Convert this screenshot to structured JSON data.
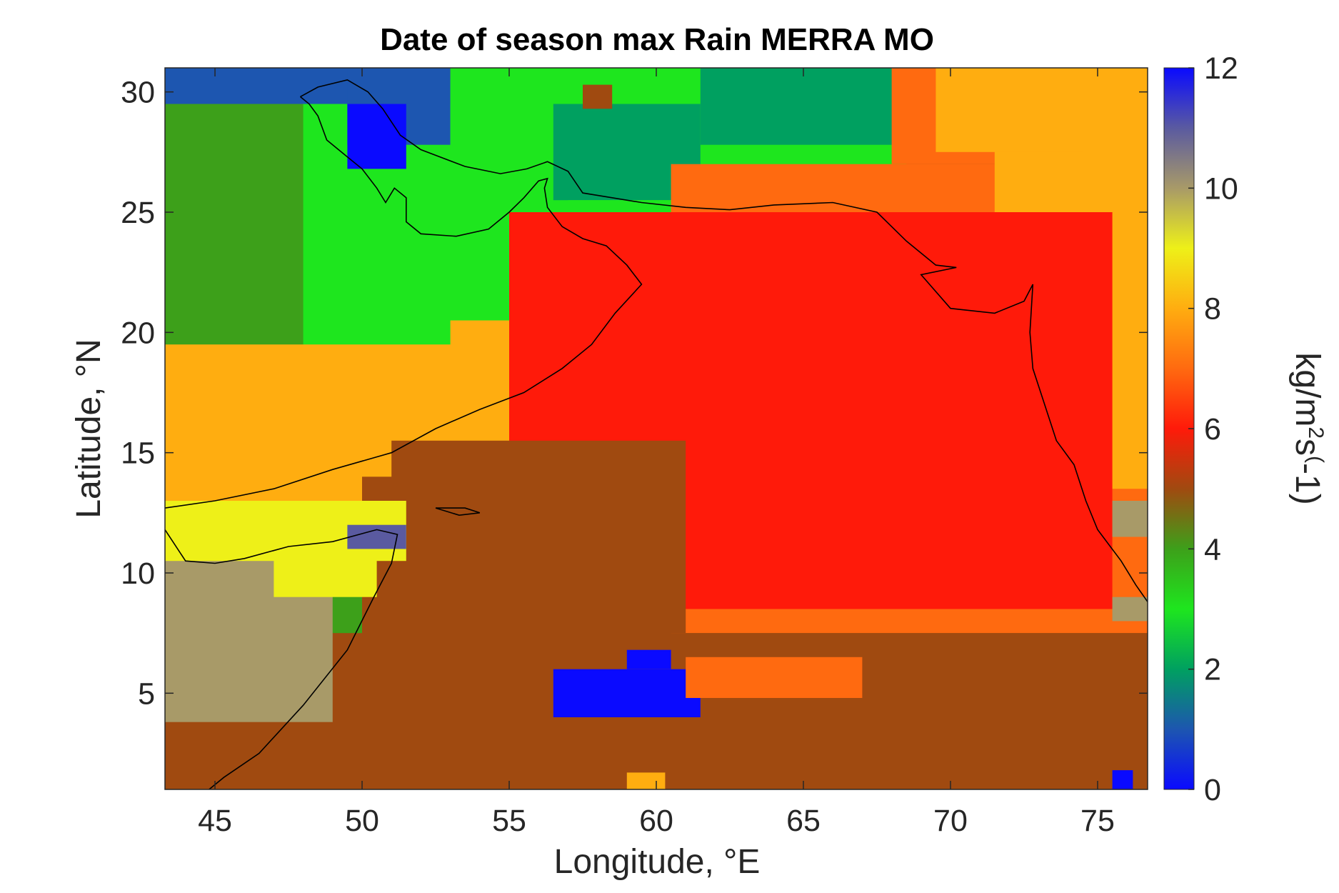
{
  "chart_data": {
    "type": "heatmap",
    "title": "Date of season max Rain MERRA MO",
    "xlabel": "Longitude, °E",
    "ylabel": "Latitude, °N",
    "xlim": [
      43.3,
      76.7
    ],
    "ylim": [
      1.0,
      31.0
    ],
    "xticks": [
      45,
      50,
      55,
      60,
      65,
      70,
      75
    ],
    "yticks": [
      5,
      10,
      15,
      20,
      25,
      30
    ],
    "xtick_labels": [
      "45",
      "50",
      "55",
      "60",
      "65",
      "70",
      "75"
    ],
    "ytick_labels": [
      "5",
      "10",
      "15",
      "20",
      "25",
      "30"
    ],
    "colorbar": {
      "label": "kg/m^2s^(-1)",
      "label_parts": [
        "kg/m",
        "2",
        "s",
        "(",
        "-1)"
      ],
      "range": [
        0,
        12
      ],
      "ticks": [
        0,
        2,
        4,
        6,
        8,
        10,
        12
      ],
      "tick_labels": [
        "0",
        "2",
        "4",
        "6",
        "8",
        "10",
        "12"
      ],
      "stops": [
        {
          "value": 0,
          "color": "#0a0aff"
        },
        {
          "value": 1,
          "color": "#1d56b0"
        },
        {
          "value": 2,
          "color": "#00a060"
        },
        {
          "value": 3,
          "color": "#1ee61e"
        },
        {
          "value": 4,
          "color": "#3da01a"
        },
        {
          "value": 5,
          "color": "#a04a10"
        },
        {
          "value": 6,
          "color": "#ff1a0a"
        },
        {
          "value": 7,
          "color": "#ff6a10"
        },
        {
          "value": 8,
          "color": "#ffad10"
        },
        {
          "value": 9,
          "color": "#eef018"
        },
        {
          "value": 10,
          "color": "#a89a68"
        },
        {
          "value": 11,
          "color": "#5a5aa0"
        },
        {
          "value": 12,
          "color": "#0a0aff"
        }
      ]
    },
    "background_value": 5,
    "regions": [
      {
        "value": 4.5,
        "lon": [
          43.3,
          52.0
        ],
        "lat": [
          1.0,
          31.0
        ]
      },
      {
        "value": 3,
        "lon": [
          45.0,
          57.5
        ],
        "lat": [
          15.5,
          30.5
        ]
      },
      {
        "value": 4.5,
        "lon": [
          43.3,
          48.0
        ],
        "lat": [
          16.5,
          29.5
        ]
      },
      {
        "value": 1,
        "lon": [
          43.3,
          53.0
        ],
        "lat": [
          29.5,
          31.0
        ]
      },
      {
        "value": 1,
        "lon": [
          49.5,
          53.0
        ],
        "lat": [
          27.8,
          31.0
        ]
      },
      {
        "value": 0.3,
        "lon": [
          49.5,
          51.5
        ],
        "lat": [
          26.8,
          29.5
        ]
      },
      {
        "value": 3,
        "lon": [
          53.0,
          68.5
        ],
        "lat": [
          24.5,
          31.0
        ]
      },
      {
        "value": 2,
        "lon": [
          61.5,
          68.5
        ],
        "lat": [
          27.8,
          31.0
        ]
      },
      {
        "value": 2,
        "lon": [
          56.5,
          61.5
        ],
        "lat": [
          25.5,
          29.5
        ]
      },
      {
        "value": 5,
        "lon": [
          57.5,
          58.5
        ],
        "lat": [
          29.3,
          30.3
        ]
      },
      {
        "value": 3,
        "lon": [
          57.0,
          61.5
        ],
        "lat": [
          22.0,
          25.5
        ]
      },
      {
        "value": 4.5,
        "lon": [
          57.0,
          61.5
        ],
        "lat": [
          21.0,
          23.0
        ]
      },
      {
        "value": 8,
        "lon": [
          43.3,
          57.0
        ],
        "lat": [
          12.5,
          19.5
        ]
      },
      {
        "value": 8,
        "lon": [
          53.0,
          57.5
        ],
        "lat": [
          16.5,
          20.5
        ]
      },
      {
        "value": 7,
        "lon": [
          55.0,
          60.5
        ],
        "lat": [
          15.5,
          21.5
        ]
      },
      {
        "value": 7,
        "lon": [
          60.5,
          76.7
        ],
        "lat": [
          7.5,
          27.0
        ]
      },
      {
        "value": 7,
        "lon": [
          68.0,
          76.7
        ],
        "lat": [
          27.0,
          31.0
        ]
      },
      {
        "value": 8,
        "lon": [
          71.5,
          76.7
        ],
        "lat": [
          13.5,
          31.0
        ]
      },
      {
        "value": 8,
        "lon": [
          69.5,
          74.5
        ],
        "lat": [
          27.5,
          31.0
        ]
      },
      {
        "value": 6,
        "lon": [
          55.0,
          75.5
        ],
        "lat": [
          8.5,
          25.0
        ]
      },
      {
        "value": 5,
        "lon": [
          43.3,
          76.7
        ],
        "lat": [
          1.0,
          7.5
        ]
      },
      {
        "value": 5,
        "lon": [
          51.0,
          61.0
        ],
        "lat": [
          7.5,
          15.5
        ]
      },
      {
        "value": 5,
        "lon": [
          50.0,
          60.5
        ],
        "lat": [
          1.0,
          14.0
        ]
      },
      {
        "value": 10,
        "lon": [
          43.3,
          49.0
        ],
        "lat": [
          3.8,
          11.8
        ]
      },
      {
        "value": 9,
        "lon": [
          43.3,
          51.5
        ],
        "lat": [
          10.5,
          13.0
        ]
      },
      {
        "value": 9,
        "lon": [
          47.0,
          50.5
        ],
        "lat": [
          9.0,
          12.0
        ]
      },
      {
        "value": 11,
        "lon": [
          49.5,
          51.5
        ],
        "lat": [
          11.0,
          12.0
        ]
      },
      {
        "value": 0.2,
        "lon": [
          56.5,
          61.5
        ],
        "lat": [
          4.0,
          6.0
        ]
      },
      {
        "value": 0.2,
        "lon": [
          59.0,
          60.5
        ],
        "lat": [
          6.0,
          6.8
        ]
      },
      {
        "value": 7,
        "lon": [
          61.0,
          67.0
        ],
        "lat": [
          4.8,
          6.5
        ]
      },
      {
        "value": 10,
        "lon": [
          75.5,
          76.7
        ],
        "lat": [
          11.5,
          13.0
        ]
      },
      {
        "value": 10,
        "lon": [
          75.5,
          76.7
        ],
        "lat": [
          8.0,
          9.0
        ]
      },
      {
        "value": 8,
        "lon": [
          59.0,
          60.3
        ],
        "lat": [
          1.0,
          1.7
        ]
      },
      {
        "value": 0.2,
        "lon": [
          75.5,
          76.2
        ],
        "lat": [
          1.0,
          1.8
        ]
      }
    ],
    "coastlines": [
      [
        [
          43.3,
          12.7
        ],
        [
          45.0,
          13.0
        ],
        [
          47.0,
          13.5
        ],
        [
          49.0,
          14.3
        ],
        [
          51.0,
          15.0
        ],
        [
          52.5,
          16.0
        ],
        [
          54.0,
          16.8
        ],
        [
          55.5,
          17.5
        ],
        [
          56.8,
          18.5
        ],
        [
          57.8,
          19.5
        ],
        [
          58.6,
          20.8
        ],
        [
          59.5,
          22.0
        ],
        [
          59.0,
          22.8
        ],
        [
          58.3,
          23.6
        ],
        [
          57.5,
          23.9
        ],
        [
          56.8,
          24.4
        ],
        [
          56.3,
          25.2
        ],
        [
          56.2,
          26.0
        ],
        [
          56.3,
          26.4
        ],
        [
          56.0,
          26.3
        ],
        [
          55.5,
          25.6
        ],
        [
          55.0,
          25.0
        ],
        [
          54.3,
          24.3
        ],
        [
          53.2,
          24.0
        ],
        [
          52.0,
          24.1
        ],
        [
          51.5,
          24.6
        ],
        [
          51.5,
          25.6
        ],
        [
          51.1,
          26.0
        ],
        [
          50.8,
          25.4
        ],
        [
          50.5,
          26.0
        ],
        [
          50.0,
          26.8
        ],
        [
          49.5,
          27.3
        ],
        [
          48.8,
          28.0
        ],
        [
          48.5,
          29.0
        ],
        [
          48.2,
          29.5
        ],
        [
          47.9,
          29.8
        ]
      ],
      [
        [
          47.9,
          29.8
        ],
        [
          48.5,
          30.2
        ],
        [
          49.5,
          30.5
        ],
        [
          50.2,
          30.0
        ],
        [
          50.7,
          29.3
        ],
        [
          51.3,
          28.2
        ],
        [
          52.0,
          27.6
        ],
        [
          53.5,
          26.9
        ],
        [
          54.7,
          26.6
        ],
        [
          55.6,
          26.8
        ],
        [
          56.3,
          27.1
        ],
        [
          57.0,
          26.7
        ],
        [
          57.5,
          25.8
        ],
        [
          58.5,
          25.6
        ],
        [
          59.5,
          25.4
        ],
        [
          61.0,
          25.2
        ],
        [
          62.5,
          25.1
        ],
        [
          64.0,
          25.3
        ],
        [
          66.0,
          25.4
        ],
        [
          67.5,
          25.0
        ],
        [
          68.5,
          23.8
        ],
        [
          69.5,
          22.8
        ],
        [
          70.2,
          22.7
        ],
        [
          69.0,
          22.4
        ],
        [
          70.0,
          21.0
        ],
        [
          71.5,
          20.8
        ],
        [
          72.5,
          21.3
        ],
        [
          72.8,
          22.0
        ],
        [
          72.7,
          20.0
        ],
        [
          72.8,
          18.5
        ],
        [
          73.2,
          17.0
        ],
        [
          73.6,
          15.5
        ],
        [
          74.2,
          14.5
        ],
        [
          74.6,
          13.0
        ],
        [
          75.0,
          11.8
        ],
        [
          75.8,
          10.5
        ],
        [
          76.3,
          9.5
        ],
        [
          76.7,
          8.8
        ]
      ],
      [
        [
          43.3,
          11.8
        ],
        [
          44.0,
          10.5
        ],
        [
          45.0,
          10.4
        ],
        [
          46.0,
          10.6
        ],
        [
          47.5,
          11.1
        ],
        [
          49.0,
          11.3
        ],
        [
          50.5,
          11.8
        ],
        [
          51.2,
          11.6
        ],
        [
          51.0,
          10.4
        ],
        [
          50.4,
          9.0
        ],
        [
          49.5,
          6.8
        ],
        [
          48.0,
          4.5
        ],
        [
          46.5,
          2.5
        ],
        [
          45.3,
          1.5
        ],
        [
          44.8,
          1.0
        ]
      ],
      [
        [
          52.5,
          12.7
        ],
        [
          53.3,
          12.4
        ],
        [
          54.0,
          12.5
        ],
        [
          53.5,
          12.7
        ],
        [
          52.5,
          12.7
        ]
      ]
    ]
  }
}
